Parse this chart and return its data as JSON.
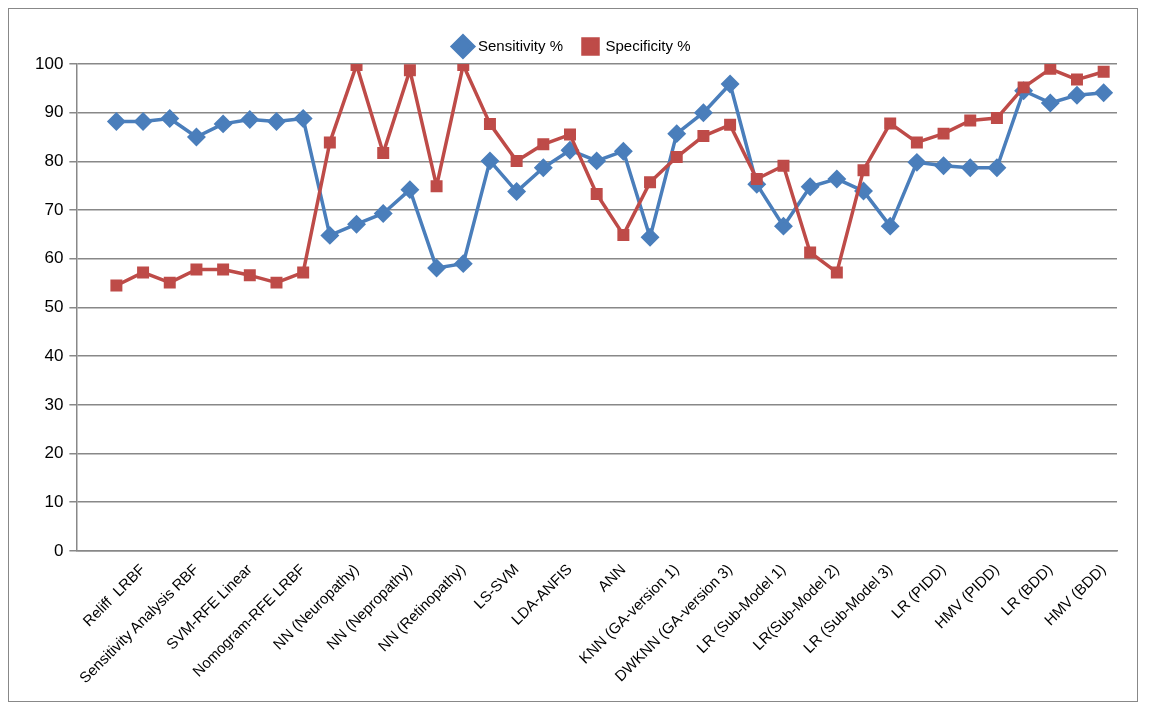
{
  "chart_data": {
    "type": "line",
    "categories": [
      null,
      null,
      "Reliff  LRBF",
      null,
      "Sensitivity Analysis RBF",
      null,
      "SVM-RFE Linear",
      null,
      "Nomogram-RFE LRBF",
      null,
      "NN (Neuropathy)",
      null,
      "NN (Nepropathy)",
      null,
      "NN (Retinopathy)",
      null,
      "LS-SVM",
      null,
      "LDA-ANFIS",
      null,
      "ANN",
      null,
      "KNN (GA-version 1)",
      null,
      "DWKNN (GA-version 3)",
      null,
      "LR (Sub-Model 1)",
      null,
      "LR(Sub-Model 2)",
      null,
      "LR (Sub-Model 3)",
      null,
      "LR (PIDD)",
      null,
      "HMV (PIDD)",
      null,
      "LR (BDD)",
      null,
      "HMV (BDD)"
    ],
    "series": [
      {
        "name": "Sensitivity %",
        "color": "#4a7ebb",
        "marker": "diamond",
        "values": [
          null,
          88.2,
          88.2,
          88.8,
          85.0,
          87.7,
          88.6,
          88.2,
          88.8,
          64.8,
          67.1,
          69.3,
          74.2,
          58.1,
          59.0,
          80.1,
          73.8,
          78.7,
          82.3,
          80.1,
          82.1,
          64.4,
          85.7,
          90.0,
          95.9,
          75.3,
          66.7,
          74.8,
          76.4,
          73.9,
          66.7,
          79.8,
          79.1,
          78.7,
          78.7,
          94.5,
          92.0,
          93.6,
          94.1
        ]
      },
      {
        "name": "Specificity %",
        "color": "#be4b48",
        "marker": "square",
        "values": [
          null,
          54.5,
          57.2,
          55.1,
          57.8,
          57.8,
          56.6,
          55.1,
          57.2,
          83.9,
          99.8,
          81.7,
          98.7,
          74.9,
          99.8,
          87.7,
          80.1,
          83.5,
          85.5,
          73.3,
          64.9,
          75.7,
          80.9,
          85.2,
          87.5,
          76.4,
          79.1,
          61.3,
          57.2,
          78.2,
          87.8,
          83.9,
          85.7,
          88.4,
          88.9,
          95.2,
          99.0,
          96.8,
          98.4
        ]
      }
    ],
    "ylim": [
      0,
      100
    ],
    "yticks": [
      0,
      10,
      20,
      30,
      40,
      50,
      60,
      70,
      80,
      90,
      100
    ],
    "grid": "y",
    "legend": "top",
    "line_style": "solid"
  }
}
